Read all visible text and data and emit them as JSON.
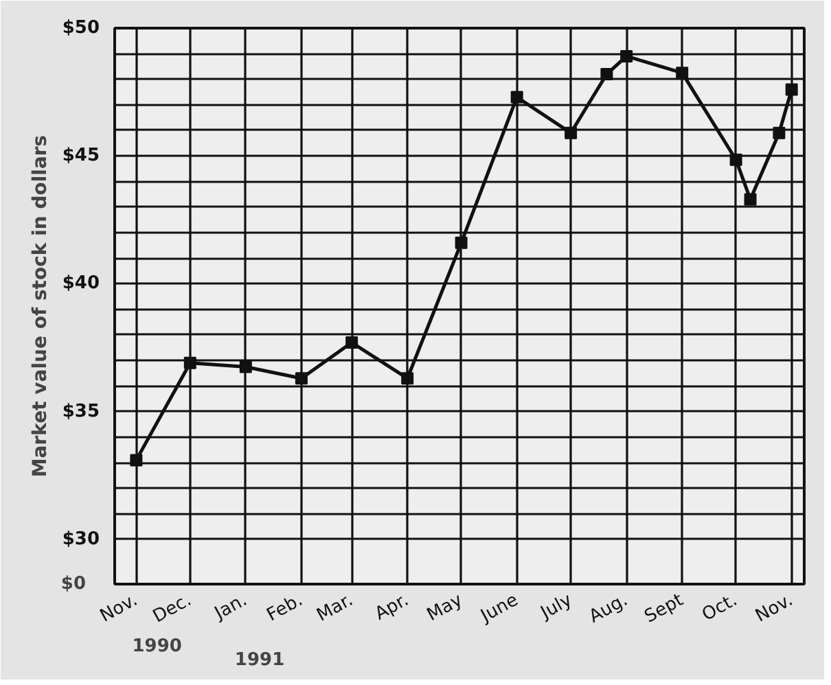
{
  "chart_data": {
    "type": "line",
    "ylabel": "Market value of stock in dollars",
    "x": [
      "1990-11",
      "1990-12",
      "1991-01",
      "1991-02",
      "1991-03",
      "1991-04",
      "1991-05",
      "1991-06",
      "1991-07",
      "1991-07-21",
      "1991-08",
      "1991-09",
      "1991-10",
      "1991-10-09",
      "1991-10-25",
      "1991-11"
    ],
    "values": [
      33.1,
      36.9,
      36.75,
      36.3,
      37.7,
      36.3,
      41.6,
      47.3,
      45.9,
      48.2,
      48.9,
      48.25,
      44.85,
      43.3,
      45.9,
      47.6
    ],
    "color": "#111111",
    "marker": "square",
    "line_style": "solid",
    "grid": true,
    "xlim": [
      "1990-10-20",
      "1991-11-08"
    ],
    "xticks": [
      {
        "value": "1990-11",
        "label": "Nov."
      },
      {
        "value": "1990-12",
        "label": "Dec."
      },
      {
        "value": "1991-01",
        "label": "Jan."
      },
      {
        "value": "1991-02",
        "label": "Feb."
      },
      {
        "value": "1991-03",
        "label": "Mar."
      },
      {
        "value": "1991-04",
        "label": "Apr."
      },
      {
        "value": "1991-05",
        "label": "May"
      },
      {
        "value": "1991-06",
        "label": "June"
      },
      {
        "value": "1991-07",
        "label": "July"
      },
      {
        "value": "1991-08",
        "label": "Aug."
      },
      {
        "value": "1991-09",
        "label": "Sept"
      },
      {
        "value": "1991-10",
        "label": "Oct."
      },
      {
        "value": "1991-11",
        "label": "Nov."
      }
    ],
    "ylim": [
      28.25,
      50
    ],
    "yticks": [
      {
        "value": 30,
        "label": "$30"
      },
      {
        "value": 31,
        "label": null
      },
      {
        "value": 32,
        "label": null
      },
      {
        "value": 33,
        "label": null
      },
      {
        "value": 34,
        "label": null
      },
      {
        "value": 35,
        "label": "$35"
      },
      {
        "value": 36,
        "label": null
      },
      {
        "value": 37,
        "label": null
      },
      {
        "value": 38,
        "label": null
      },
      {
        "value": 39,
        "label": null
      },
      {
        "value": 40,
        "label": "$40"
      },
      {
        "value": 41,
        "label": null
      },
      {
        "value": 42,
        "label": null
      },
      {
        "value": 43,
        "label": null
      },
      {
        "value": 44,
        "label": null
      },
      {
        "value": 45,
        "label": "$45"
      },
      {
        "value": 46,
        "label": null
      },
      {
        "value": 47,
        "label": null
      },
      {
        "value": 48,
        "label": null
      },
      {
        "value": 49,
        "label": null
      },
      {
        "value": 50,
        "label": "$50"
      }
    ],
    "annotations": [
      "$0",
      "1990",
      "1991"
    ]
  }
}
